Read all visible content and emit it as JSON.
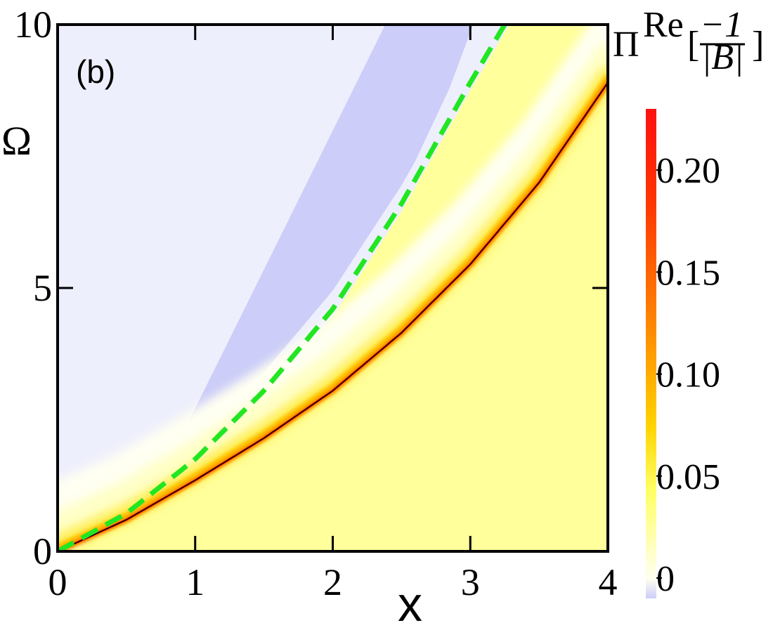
{
  "chart_data": {
    "type": "heatmap",
    "panel_label": "(b)",
    "xlabel": "x",
    "ylabel": "Ω",
    "colorbar_label": {
      "symbol": "Π",
      "superscript": "Re",
      "bracket_open": "[",
      "numerator": "−1",
      "denominator": "|B|",
      "bracket_close": "]"
    },
    "xlim": [
      0,
      4
    ],
    "ylim": [
      0,
      10
    ],
    "x_ticks": [
      "0",
      "1",
      "2",
      "3",
      "4"
    ],
    "y_ticks": [
      "0",
      "5",
      "10"
    ],
    "colorbar": {
      "range": [
        -0.01,
        0.23
      ],
      "ticks": [
        "0",
        "0.05",
        "0.10",
        "0.15",
        "0.20"
      ],
      "tick_values": [
        0,
        0.05,
        0.1,
        0.15,
        0.2
      ],
      "colormap": [
        "#cccdf8",
        "#fffff0",
        "#ffff66",
        "#ffd400",
        "#ff8a00",
        "#ff3800",
        "#ff1010"
      ]
    },
    "regions": [
      {
        "name": "light-lavender",
        "value": -0.002,
        "color": "#eeeffc"
      },
      {
        "name": "lavender-band",
        "value": -0.008,
        "color": "#cccdf8"
      },
      {
        "name": "pale-yellow",
        "value": 0.03,
        "color": "#ffff9c"
      }
    ],
    "series": [
      {
        "name": "",
        "style": "solid-black-ridge",
        "x": [
          0,
          0.5,
          1,
          1.5,
          2,
          2.5,
          3,
          3.5,
          4
        ],
        "y": [
          0,
          0.6,
          1.35,
          2.15,
          3.05,
          4.15,
          5.45,
          7.0,
          8.9
        ]
      },
      {
        "name": "",
        "style": "green-dashed",
        "x": [
          0,
          0.5,
          1,
          1.5,
          2,
          2.5,
          3,
          3.25
        ],
        "y": [
          0,
          0.72,
          1.75,
          3.05,
          4.6,
          6.6,
          8.9,
          10
        ]
      }
    ]
  }
}
